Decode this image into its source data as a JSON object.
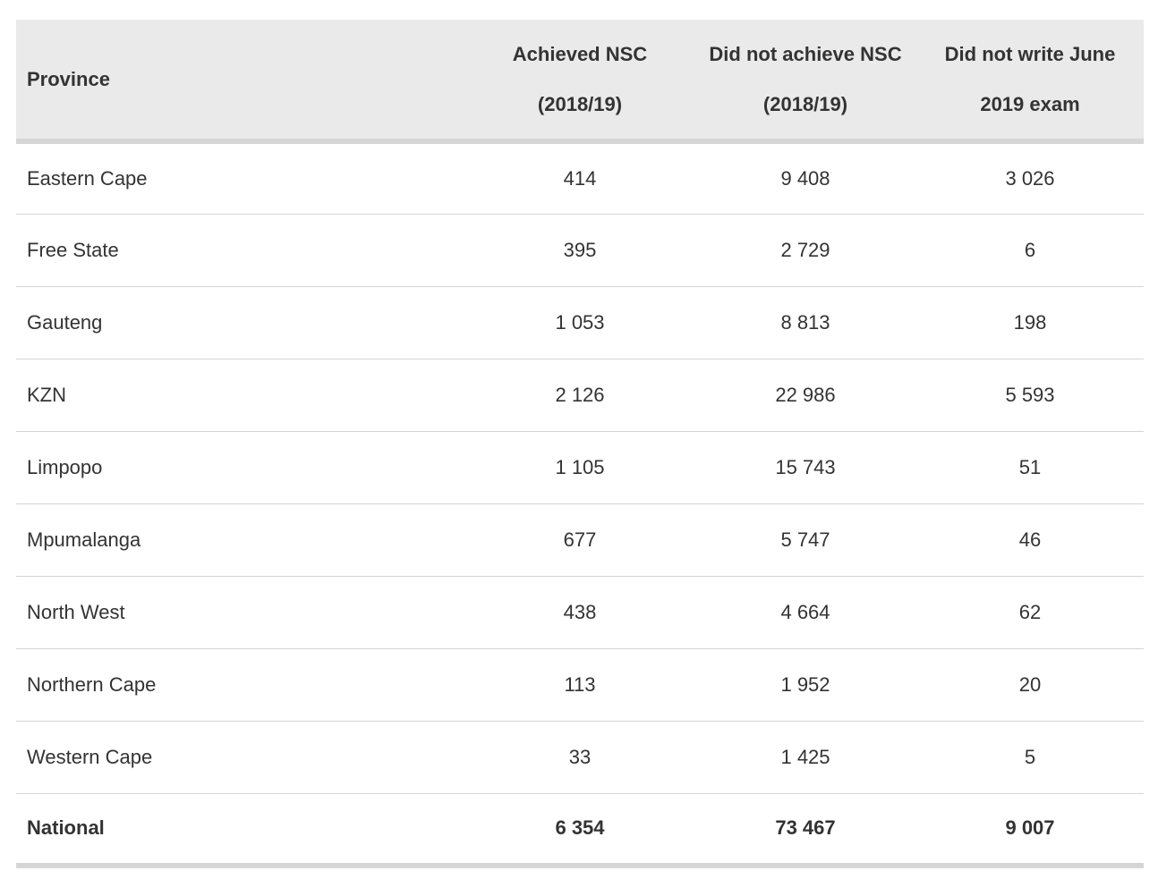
{
  "table": {
    "headers": {
      "province": "Province",
      "achieved": [
        "Achieved NSC",
        "(2018/19)"
      ],
      "not_achieved": [
        "Did not achieve NSC",
        "(2018/19)"
      ],
      "did_not_write": [
        "Did not write June",
        "2019 exam"
      ]
    },
    "rows": [
      {
        "province": "Eastern Cape",
        "achieved": "414",
        "not_achieved": "9 408",
        "did_not_write": "3 026"
      },
      {
        "province": "Free State",
        "achieved": "395",
        "not_achieved": "2 729",
        "did_not_write": "6"
      },
      {
        "province": "Gauteng",
        "achieved": "1 053",
        "not_achieved": "8 813",
        "did_not_write": "198"
      },
      {
        "province": "KZN",
        "achieved": "2 126",
        "not_achieved": "22 986",
        "did_not_write": "5 593"
      },
      {
        "province": "Limpopo",
        "achieved": "1 105",
        "not_achieved": "15 743",
        "did_not_write": "51"
      },
      {
        "province": "Mpumalanga",
        "achieved": "677",
        "not_achieved": "5 747",
        "did_not_write": "46"
      },
      {
        "province": "North West",
        "achieved": "438",
        "not_achieved": "4 664",
        "did_not_write": "62"
      },
      {
        "province": "Northern Cape",
        "achieved": "113",
        "not_achieved": "1 952",
        "did_not_write": "20"
      },
      {
        "province": "Western Cape",
        "achieved": "33",
        "not_achieved": "1 425",
        "did_not_write": "5"
      }
    ],
    "total": {
      "province": "National",
      "achieved": "6 354",
      "not_achieved": "73 467",
      "did_not_write": "9 007"
    }
  }
}
